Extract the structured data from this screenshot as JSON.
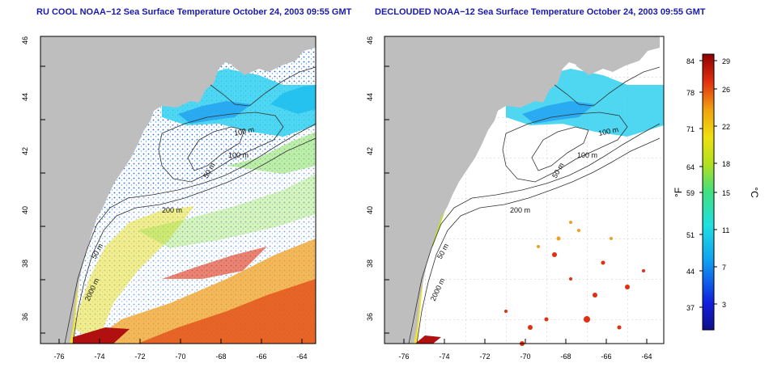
{
  "panels": [
    {
      "title": "RU COOL NOAA−12 Sea Surface Temperature October 24, 2003 09:55 GMT",
      "x_ticks": [
        "-76",
        "-74",
        "-72",
        "-70",
        "-68",
        "-66",
        "-64"
      ],
      "y_ticks": [
        "36",
        "38",
        "40",
        "42",
        "44",
        "46"
      ],
      "contour_labels": [
        "100 m",
        "100 m",
        "50 m",
        "200 m",
        "50 m",
        "2000 m"
      ]
    },
    {
      "title": "DECLOUDED NOAA−12 Sea Surface Temperature October 24, 2003 09:55 GMT",
      "x_ticks": [
        "-76",
        "-74",
        "-72",
        "-70",
        "-68",
        "-66",
        "-64"
      ],
      "y_ticks": [
        "36",
        "38",
        "40",
        "42",
        "44",
        "46"
      ],
      "contour_labels": [
        "100 m",
        "100 m",
        "50 m",
        "200 m",
        "50 m",
        "2000 m"
      ]
    }
  ],
  "colorbar": {
    "f_label": "°F",
    "c_label": "°C",
    "f_ticks": [
      "84",
      "78",
      "71",
      "64",
      "59",
      "51",
      "44",
      "37"
    ],
    "c_ticks": [
      "29",
      "26",
      "22",
      "18",
      "15",
      "11",
      "7",
      "3"
    ]
  },
  "colors": {
    "land": "#bebebe",
    "title": "#1a1aa8",
    "cold": "#1010c0",
    "warm": "#c01010"
  },
  "chart_data": {
    "type": "heatmap",
    "x_range": [
      -77,
      -63
    ],
    "y_range": [
      35,
      46
    ],
    "temperature_range_c": [
      0,
      30
    ],
    "temperature_range_f": [
      32,
      86
    ]
  }
}
